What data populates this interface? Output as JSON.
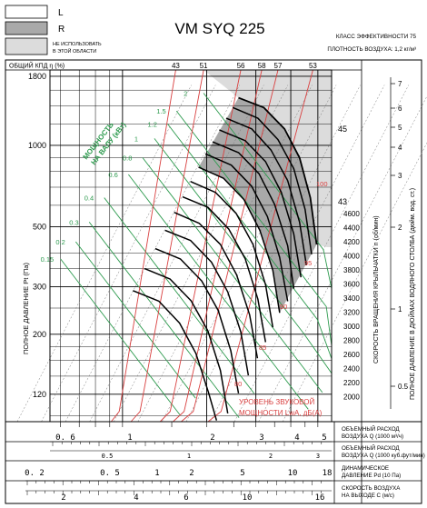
{
  "header": {
    "title": "VM SYQ 225",
    "legend": [
      {
        "key": "L",
        "label": "L",
        "fill": "#ffffff"
      },
      {
        "key": "R",
        "label": "R",
        "fill": "#a9a9a9"
      },
      {
        "key": "NA",
        "label": "НЕ ИСПОЛЬЗОВАТЬ В ЭТОЙ ОБЛАСТИ",
        "label_line1": "НЕ ИСПОЛЬЗОВАТЬ",
        "label_line2": "В ЭТОЙ ОБЛАСТИ",
        "fill": "#dcdcdc"
      }
    ],
    "efficiency_class": "КЛАСС ЭФФЕКТИВНОСТИ 75",
    "air_density": "ПЛОТНОСТЬ ВОЗДУХА: 1,2 кг/м³"
  },
  "labels": {
    "overall_efficiency": "ОБЩИЙ КПД η (%)",
    "total_pressure": "ПОЛНОЕ ДАВЛЕНИЕ Pt (Па)",
    "shaft_power_1": "МОЩНОСТЬ",
    "shaft_power_2": "НА ВАЛУ (кВт)",
    "rotation_speed": "СКОРОСТЬ ВРАЩЕНИЯ КРЫЛЬЧАТКИ n (об/мин)",
    "total_pressure_wg": "ПОЛНОЕ ДАВЛЕНИЕ В ДЮЙМАХ ВОДЯНОГО СТОЛБА (дюйм. вод. ст.)",
    "sound_power_1": "УРОВЕНЬ ЗВУКОВОЙ",
    "sound_power_2": "МОЩНОСТИ LwA, дБ(А)",
    "scale1_a": "ОБЪЕМНЫЙ РАСХОД",
    "scale1_b": "ВОЗДУХА Q (1000 м³/ч)",
    "scale2_a": "ОБЪЕМНЫЙ РАСХОД",
    "scale2_b": "ВОЗДУХА Q (1000 куб.фут/мин)",
    "scale3_a": "ДИНАМИЧЕСКОЕ",
    "scale3_b": "ДАВЛЕНИЕ Pd (10 Па)",
    "scale4_a": "СКОРОСТЬ ВОЗДУХА",
    "scale4_b": "НА ВЫХОДЕ С (м/с)"
  },
  "colors": {
    "speed_curve": "#000000",
    "power_line": "#2e9b4f",
    "efficiency_line": "#d94040",
    "sound_line": "#d94040",
    "grid": "#000000",
    "dashed": "#777777",
    "dark_region": "#a9a9a9",
    "light_region": "#dcdcdc"
  },
  "chart_data": {
    "type": "line",
    "x_scale": "log",
    "y_scale": "log",
    "xlim": [
      0.55,
      5.6
    ],
    "ylim": [
      95,
      1900
    ],
    "y_ticks": [
      120,
      200,
      300,
      500,
      1000,
      1800
    ],
    "y_tick_labels": [
      "120",
      "200",
      "300",
      "500",
      "1000",
      "1800"
    ],
    "x_ticks": [
      0.6,
      1,
      2,
      3,
      4,
      5
    ],
    "x_tick_labels": [
      "0. 6",
      "1",
      "2",
      "3",
      "4",
      "5"
    ],
    "efficiency_top_labels": [
      "43",
      "51",
      "56",
      "58",
      "57",
      "53"
    ],
    "efficiency_side_labels": [
      "45",
      "43"
    ],
    "rpm_labels": [
      "4600",
      "4400",
      "4200",
      "4000",
      "3800",
      "3600",
      "3400",
      "3200",
      "3000",
      "2800",
      "2600",
      "2400",
      "2200",
      "2000"
    ],
    "wg_labels": [
      "7",
      "6",
      "5",
      "4",
      "3",
      "2",
      "1",
      "0.5"
    ],
    "power_labels": [
      "0.15",
      "0.2",
      "0.3",
      "0.4",
      "0.6",
      "0.8",
      "1",
      "1.2",
      "1.5",
      "2"
    ],
    "sound_labels": [
      "100",
      "95",
      "90",
      "85",
      "80"
    ],
    "cfm_ticks": [
      "0.5",
      "1",
      "2",
      "3"
    ],
    "pd_ticks": [
      "0. 2",
      "0. 5",
      "1",
      "2",
      "5",
      "10",
      "18"
    ],
    "velocity_ticks": [
      "2",
      "4",
      "6",
      "10",
      "16"
    ],
    "series": [
      {
        "rpm": 4600,
        "points": [
          [
            2.6,
            1500
          ],
          [
            3.2,
            1380
          ],
          [
            3.8,
            1150
          ],
          [
            4.3,
            900
          ],
          [
            4.7,
            640
          ],
          [
            4.95,
            430
          ]
        ]
      },
      {
        "rpm": 4400,
        "points": [
          [
            2.48,
            1380
          ],
          [
            3.05,
            1260
          ],
          [
            3.6,
            1050
          ],
          [
            4.1,
            820
          ],
          [
            4.5,
            580
          ],
          [
            4.75,
            395
          ]
        ]
      },
      {
        "rpm": 4200,
        "points": [
          [
            2.35,
            1260
          ],
          [
            2.9,
            1150
          ],
          [
            3.4,
            960
          ],
          [
            3.9,
            740
          ],
          [
            4.3,
            520
          ],
          [
            4.55,
            360
          ]
        ]
      },
      {
        "rpm": 4000,
        "points": [
          [
            2.22,
            1140
          ],
          [
            2.75,
            1040
          ],
          [
            3.25,
            870
          ],
          [
            3.7,
            670
          ],
          [
            4.1,
            470
          ],
          [
            4.35,
            325
          ]
        ]
      },
      {
        "rpm": 3800,
        "points": [
          [
            2.1,
            1030
          ],
          [
            2.6,
            940
          ],
          [
            3.08,
            785
          ],
          [
            3.5,
            605
          ],
          [
            3.9,
            425
          ],
          [
            4.1,
            295
          ]
        ]
      },
      {
        "rpm": 3600,
        "points": [
          [
            1.98,
            930
          ],
          [
            2.45,
            845
          ],
          [
            2.9,
            705
          ],
          [
            3.3,
            545
          ],
          [
            3.65,
            385
          ],
          [
            3.9,
            265
          ]
        ]
      },
      {
        "rpm": 3400,
        "points": [
          [
            1.87,
            830
          ],
          [
            2.3,
            755
          ],
          [
            2.72,
            630
          ],
          [
            3.1,
            485
          ],
          [
            3.45,
            345
          ],
          [
            3.65,
            240
          ]
        ]
      },
      {
        "rpm": 3200,
        "points": [
          [
            1.75,
            735
          ],
          [
            2.15,
            670
          ],
          [
            2.55,
            560
          ],
          [
            2.93,
            430
          ],
          [
            3.25,
            305
          ],
          [
            3.45,
            212
          ]
        ]
      },
      {
        "rpm": 3000,
        "points": [
          [
            1.64,
            645
          ],
          [
            2.02,
            590
          ],
          [
            2.4,
            490
          ],
          [
            2.75,
            380
          ],
          [
            3.05,
            270
          ],
          [
            3.25,
            187
          ]
        ]
      },
      {
        "rpm": 2800,
        "points": [
          [
            1.53,
            565
          ],
          [
            1.88,
            515
          ],
          [
            2.24,
            430
          ],
          [
            2.56,
            332
          ],
          [
            2.85,
            236
          ],
          [
            3.04,
            163
          ]
        ]
      },
      {
        "rpm": 2600,
        "points": [
          [
            1.42,
            485
          ],
          [
            1.75,
            445
          ],
          [
            2.08,
            370
          ],
          [
            2.38,
            287
          ],
          [
            2.65,
            204
          ],
          [
            2.82,
            141
          ]
        ]
      },
      {
        "rpm": 2400,
        "points": [
          [
            1.31,
            415
          ],
          [
            1.61,
            380
          ],
          [
            1.92,
            315
          ],
          [
            2.2,
            245
          ],
          [
            2.44,
            174
          ],
          [
            2.6,
            121
          ]
        ]
      },
      {
        "rpm": 2200,
        "points": [
          [
            1.2,
            350
          ],
          [
            1.48,
            320
          ],
          [
            1.76,
            266
          ],
          [
            2.02,
            206
          ],
          [
            2.24,
            147
          ],
          [
            2.38,
            102
          ]
        ]
      },
      {
        "rpm": 2000,
        "points": [
          [
            1.09,
            290
          ],
          [
            1.35,
            265
          ],
          [
            1.6,
            220
          ],
          [
            1.83,
            170
          ],
          [
            2.03,
            122
          ],
          [
            2.17,
            96
          ]
        ]
      }
    ]
  }
}
